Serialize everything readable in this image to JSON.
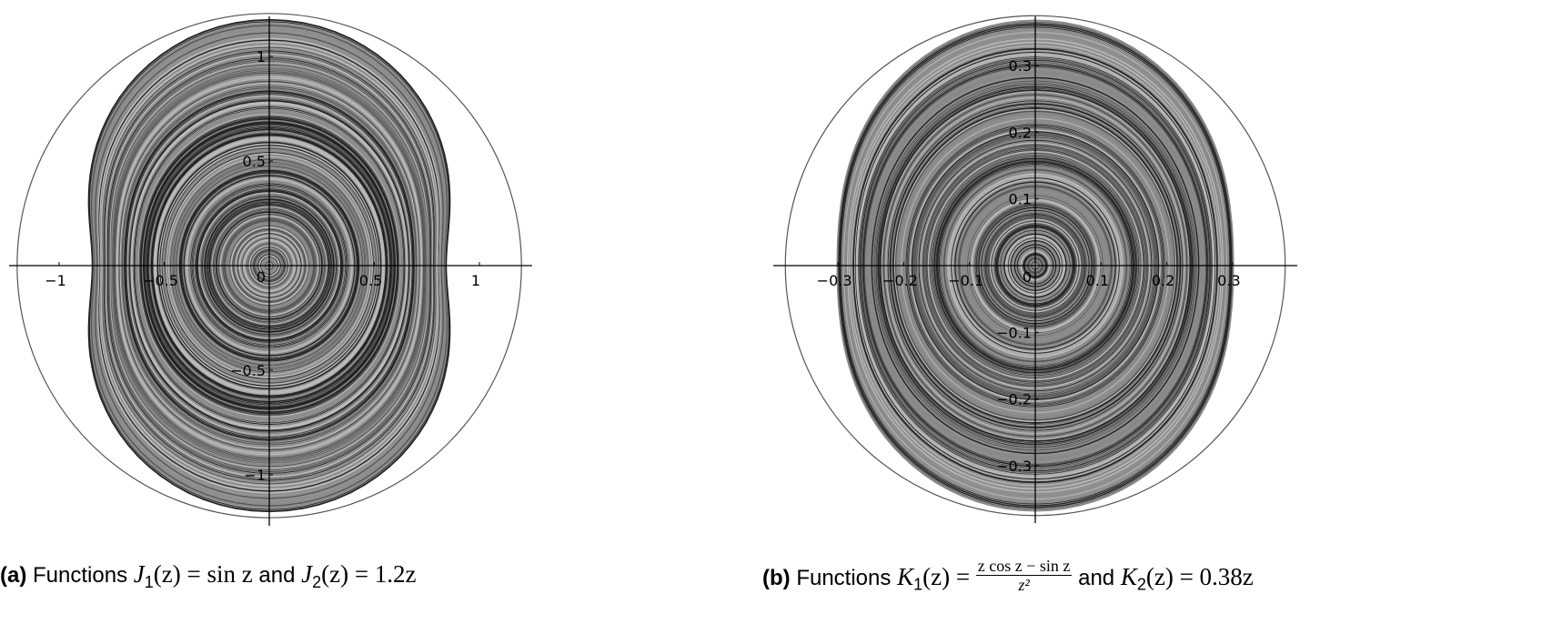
{
  "figures": [
    {
      "id": "a",
      "caption": {
        "label": "(a)",
        "text": "Functions",
        "f1": "J",
        "f1_sub": "1",
        "f1_arg": "(z)",
        "eq": " = ",
        "f1_expr": "sin z",
        "and": "and",
        "f2": "J",
        "f2_sub": "2",
        "f2_arg": "(z)",
        "f2_expr": "1.2z"
      },
      "x_ticks": [
        {
          "v": -1,
          "label": "−1"
        },
        {
          "v": -0.5,
          "label": "−0.5"
        },
        {
          "v": 0.5,
          "label": "0.5"
        },
        {
          "v": 1,
          "label": "1"
        }
      ],
      "y_ticks": [
        {
          "v": 1,
          "label": "1"
        },
        {
          "v": 0.5,
          "label": "0.5"
        },
        {
          "v": -0.5,
          "label": "−0.5"
        },
        {
          "v": -1,
          "label": "−1"
        }
      ],
      "origin_label": "0",
      "circle_radius": 1.2
    },
    {
      "id": "b",
      "caption": {
        "label": "(b)",
        "text": "Functions",
        "f1": "K",
        "f1_sub": "1",
        "f1_arg": "(z)",
        "eq": " = ",
        "f1_num": "z cos z − sin z",
        "f1_den": "z²",
        "and": "and",
        "f2": "K",
        "f2_sub": "2",
        "f2_arg": "(z)",
        "f2_expr": "0.38z"
      },
      "x_ticks": [
        {
          "v": -0.3,
          "label": "−0.3"
        },
        {
          "v": -0.2,
          "label": "−0.2"
        },
        {
          "v": -0.1,
          "label": "−0.1"
        },
        {
          "v": 0.1,
          "label": "0.1"
        },
        {
          "v": 0.2,
          "label": "0.2"
        },
        {
          "v": 0.3,
          "label": "0.3"
        }
      ],
      "y_ticks": [
        {
          "v": 0.3,
          "label": "0.3"
        },
        {
          "v": 0.2,
          "label": "0.2"
        },
        {
          "v": 0.1,
          "label": "0.1"
        },
        {
          "v": -0.1,
          "label": "−0.1"
        },
        {
          "v": -0.2,
          "label": "−0.2"
        },
        {
          "v": -0.3,
          "label": "−0.3"
        }
      ],
      "origin_label": "0",
      "circle_radius": 0.38
    }
  ],
  "colors": {
    "fill": "#9a9a9a",
    "ring_dark": "#222222",
    "circle": "#555555"
  }
}
